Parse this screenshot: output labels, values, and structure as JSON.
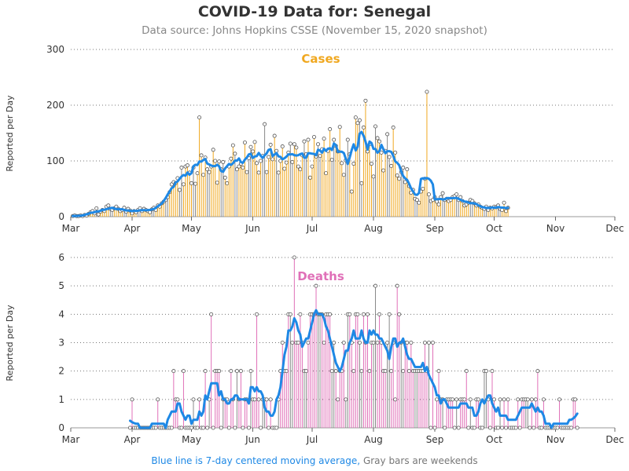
{
  "title": "COVID-19 Data for: Senegal",
  "subtitle": "Data source: Johns Hopkins CSSE (November 15, 2020 snapshot)",
  "footnote": {
    "blue_part": "Blue line is 7-day centered moving average,",
    "gray_part": "Gray bars are weekends"
  },
  "colors": {
    "cases": "#f0a820",
    "deaths": "#e070b8",
    "weekend": "#888888",
    "average": "#1e88e5"
  },
  "chart_data": [
    {
      "type": "bar",
      "title": "Cases",
      "ylabel": "Reported per Day",
      "ylim": [
        0,
        300
      ],
      "yticks": [
        0,
        100,
        200,
        300
      ],
      "x_month_labels": [
        "Mar",
        "Apr",
        "May",
        "Jun",
        "Jul",
        "Aug",
        "Sep",
        "Oct",
        "Nov",
        "Dec"
      ],
      "x_start_date": "2020-03-02",
      "grid": "horizontal-dotted",
      "values": [
        1,
        2,
        1,
        1,
        2,
        1,
        3,
        2,
        5,
        8,
        10,
        6,
        15,
        4,
        9,
        12,
        10,
        18,
        20,
        14,
        12,
        15,
        18,
        14,
        10,
        12,
        16,
        9,
        14,
        11,
        6,
        10,
        8,
        12,
        15,
        10,
        14,
        12,
        10,
        8,
        13,
        16,
        12,
        20,
        18,
        24,
        27,
        30,
        35,
        44,
        58,
        62,
        60,
        69,
        48,
        88,
        58,
        90,
        92,
        79,
        60,
        88,
        59,
        78,
        178,
        110,
        75,
        106,
        85,
        80,
        90,
        120,
        100,
        61,
        99,
        85,
        98,
        70,
        60,
        90,
        104,
        128,
        113,
        85,
        90,
        95,
        88,
        133,
        80,
        105,
        125,
        117,
        134,
        96,
        79,
        100,
        109,
        166,
        80,
        107,
        129,
        103,
        145,
        118,
        79,
        100,
        126,
        86,
        97,
        115,
        131,
        98,
        130,
        124,
        90,
        85,
        110,
        135,
        112,
        138,
        70,
        90,
        143,
        108,
        130,
        109,
        121,
        140,
        78,
        118,
        157,
        102,
        138,
        127,
        117,
        161,
        96,
        75,
        101,
        138,
        112,
        45,
        95,
        178,
        168,
        173,
        60,
        160,
        208,
        117,
        130,
        95,
        72,
        162,
        141,
        135,
        115,
        83,
        118,
        148,
        107,
        91,
        160,
        115,
        74,
        68,
        80,
        88,
        62,
        85,
        55,
        43,
        48,
        32,
        30,
        25,
        45,
        50,
        68,
        224,
        40,
        28,
        30,
        35,
        27,
        22,
        35,
        42,
        30,
        32,
        28,
        30,
        35,
        37,
        40,
        30,
        35,
        28,
        20,
        22,
        25,
        30,
        28,
        24,
        20,
        22,
        18,
        16,
        14,
        18,
        12,
        16,
        15,
        18,
        17,
        20,
        14,
        12,
        25,
        10,
        16
      ]
    },
    {
      "type": "bar",
      "title": "Deaths",
      "ylabel": "Reported per Day",
      "ylim": [
        0,
        6
      ],
      "yticks": [
        0,
        1,
        2,
        3,
        4,
        5,
        6
      ],
      "x_month_labels": [
        "Mar",
        "Apr",
        "May",
        "Jun",
        "Jul",
        "Aug",
        "Sep",
        "Oct",
        "Nov",
        "Dec"
      ],
      "x_start_date": "2020-03-31",
      "grid": "horizontal-dotted",
      "values": [
        0,
        1,
        0,
        0,
        0,
        0,
        0,
        0,
        0,
        0,
        0,
        0,
        0,
        0,
        1,
        0,
        0,
        0,
        0,
        0,
        0,
        0,
        2,
        1,
        1,
        0,
        0,
        2,
        0,
        0,
        0,
        0,
        1,
        0,
        0,
        1,
        0,
        0,
        2,
        0,
        1,
        4,
        0,
        2,
        2,
        2,
        0,
        1,
        1,
        1,
        0,
        2,
        1,
        0,
        2,
        1,
        2,
        0,
        1,
        1,
        0,
        2,
        1,
        1,
        4,
        1,
        0,
        1,
        1,
        1,
        0,
        1,
        0,
        0,
        0,
        1,
        2,
        3,
        2,
        2,
        4,
        4,
        3,
        6,
        3,
        3,
        4,
        3,
        2,
        2,
        3,
        4,
        4,
        4,
        5,
        4,
        4,
        4,
        3,
        4,
        4,
        4,
        2,
        3,
        2,
        1,
        2,
        2,
        3,
        1,
        4,
        4,
        3,
        2,
        4,
        4,
        3,
        2,
        4,
        3,
        4,
        2,
        3,
        3,
        5,
        3,
        4,
        3,
        2,
        2,
        3,
        4,
        2,
        3,
        1,
        5,
        4,
        3,
        2,
        3,
        3,
        2,
        3,
        2,
        2,
        2,
        2,
        2,
        2,
        3,
        2,
        3,
        0,
        3,
        0,
        1,
        2,
        1,
        1,
        0,
        1,
        1,
        1,
        1,
        0,
        1,
        0,
        1,
        1,
        1,
        2,
        0,
        1,
        0,
        0,
        1,
        1,
        0,
        0,
        2,
        2,
        1,
        0,
        2,
        1,
        0,
        0,
        1,
        0,
        1,
        0,
        1,
        0,
        0,
        0,
        0,
        1,
        0,
        1,
        1,
        1,
        1,
        0,
        1,
        0,
        1,
        2,
        0,
        0,
        1,
        0,
        0,
        0,
        0,
        0,
        0,
        0,
        1,
        0,
        0,
        0,
        0,
        0,
        0,
        1,
        1,
        0
      ]
    }
  ]
}
